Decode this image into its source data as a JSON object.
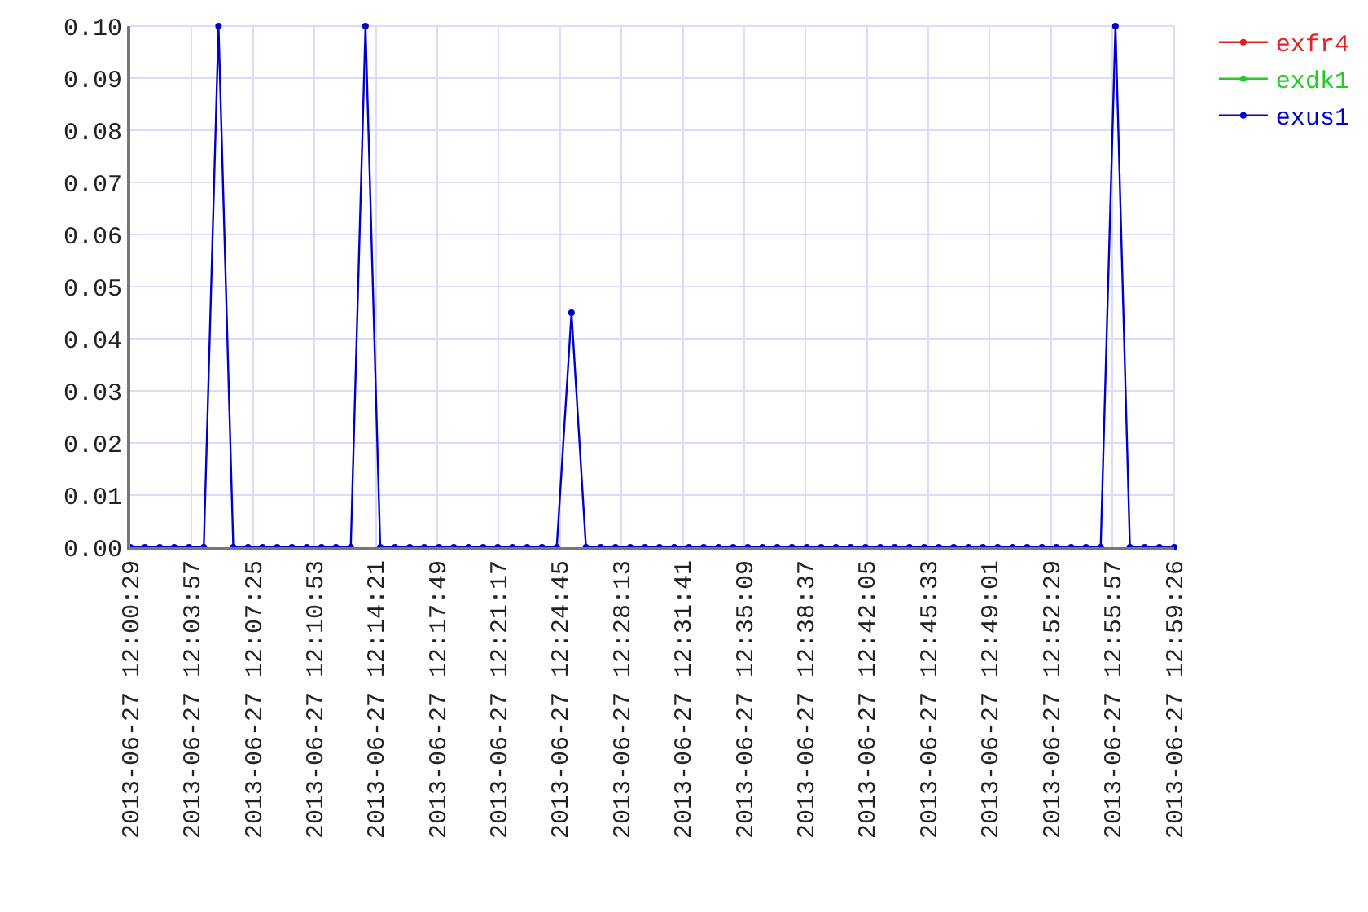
{
  "chart_data": {
    "type": "line",
    "x": [
      "2013-06-27T12:00:29",
      "2013-06-27T12:01:19",
      "2013-06-27T12:02:09",
      "2013-06-27T12:02:58",
      "2013-06-27T12:03:48",
      "2013-06-27T12:04:38",
      "2013-06-27T12:05:28",
      "2013-06-27T12:06:18",
      "2013-06-27T12:07:08",
      "2013-06-27T12:07:57",
      "2013-06-27T12:08:47",
      "2013-06-27T12:09:37",
      "2013-06-27T12:10:27",
      "2013-06-27T12:11:17",
      "2013-06-27T12:12:06",
      "2013-06-27T12:12:56",
      "2013-06-27T12:13:46",
      "2013-06-27T12:14:36",
      "2013-06-27T12:15:26",
      "2013-06-27T12:16:16",
      "2013-06-27T12:17:05",
      "2013-06-27T12:17:55",
      "2013-06-27T12:18:45",
      "2013-06-27T12:19:35",
      "2013-06-27T12:20:25",
      "2013-06-27T12:21:14",
      "2013-06-27T12:22:04",
      "2013-06-27T12:22:54",
      "2013-06-27T12:23:44",
      "2013-06-27T12:24:34",
      "2013-06-27T12:25:24",
      "2013-06-27T12:26:13",
      "2013-06-27T12:27:03",
      "2013-06-27T12:27:53",
      "2013-06-27T12:28:43",
      "2013-06-27T12:29:33",
      "2013-06-27T12:30:22",
      "2013-06-27T12:31:12",
      "2013-06-27T12:32:02",
      "2013-06-27T12:32:52",
      "2013-06-27T12:33:42",
      "2013-06-27T12:34:32",
      "2013-06-27T12:35:21",
      "2013-06-27T12:36:11",
      "2013-06-27T12:37:01",
      "2013-06-27T12:37:51",
      "2013-06-27T12:38:41",
      "2013-06-27T12:39:30",
      "2013-06-27T12:40:20",
      "2013-06-27T12:41:10",
      "2013-06-27T12:42:00",
      "2013-06-27T12:42:50",
      "2013-06-27T12:43:39",
      "2013-06-27T12:44:29",
      "2013-06-27T12:45:19",
      "2013-06-27T12:46:09",
      "2013-06-27T12:46:59",
      "2013-06-27T12:47:49",
      "2013-06-27T12:48:38",
      "2013-06-27T12:49:28",
      "2013-06-27T12:50:18",
      "2013-06-27T12:51:08",
      "2013-06-27T12:51:58",
      "2013-06-27T12:52:47",
      "2013-06-27T12:53:37",
      "2013-06-27T12:54:27",
      "2013-06-27T12:55:17",
      "2013-06-27T12:56:07",
      "2013-06-27T12:56:56",
      "2013-06-27T12:57:46",
      "2013-06-27T12:58:36",
      "2013-06-27T12:59:26"
    ],
    "series": [
      {
        "name": "exfr4",
        "color": "#dd2222",
        "values": [
          null,
          null,
          null,
          null,
          null,
          null,
          null,
          null,
          null,
          null,
          null,
          null,
          null,
          null,
          null,
          null,
          null,
          null,
          null,
          null,
          null,
          null,
          null,
          null,
          null,
          null,
          null,
          null,
          null,
          null,
          null,
          null,
          null,
          null,
          null,
          null,
          null,
          null,
          null,
          null,
          null,
          null,
          null,
          null,
          null,
          null,
          null,
          null,
          null,
          null,
          null,
          null,
          null,
          null,
          null,
          null,
          null,
          null,
          null,
          null,
          null,
          null,
          null,
          null,
          null,
          null,
          null,
          null,
          null,
          null,
          null,
          null
        ]
      },
      {
        "name": "exdk1",
        "color": "#22cc22",
        "values": [
          null,
          null,
          null,
          null,
          null,
          null,
          null,
          null,
          null,
          null,
          null,
          null,
          null,
          null,
          null,
          null,
          null,
          null,
          null,
          null,
          null,
          null,
          null,
          null,
          null,
          null,
          null,
          null,
          null,
          null,
          null,
          null,
          null,
          null,
          null,
          null,
          null,
          null,
          null,
          null,
          null,
          null,
          null,
          null,
          null,
          null,
          null,
          null,
          null,
          null,
          null,
          null,
          null,
          null,
          null,
          null,
          null,
          null,
          null,
          null,
          null,
          null,
          null,
          null,
          null,
          null,
          null,
          null,
          null,
          null,
          null,
          null
        ]
      },
      {
        "name": "exus1",
        "color": "#0000cc",
        "values": [
          0,
          0,
          0,
          0,
          0,
          0,
          0.1,
          0,
          0,
          0,
          0,
          0,
          0,
          0,
          0,
          0,
          0.1,
          0,
          0,
          0,
          0,
          0,
          0,
          0,
          0,
          0,
          0,
          0,
          0,
          0,
          0.045,
          0,
          0,
          0,
          0,
          0,
          0,
          0,
          0,
          0,
          0,
          0,
          0,
          0,
          0,
          0,
          0,
          0,
          0,
          0,
          0,
          0,
          0,
          0,
          0,
          0,
          0,
          0,
          0,
          0,
          0,
          0,
          0,
          0,
          0,
          0,
          0,
          0.1,
          0,
          0,
          0,
          0
        ]
      }
    ],
    "xlim": [
      "2013-06-27T12:00:29",
      "2013-06-27T12:59:26"
    ],
    "xticks": [
      {
        "value": "2013-06-27T12:00:29",
        "label": "2013-06-27 12:00:29"
      },
      {
        "value": "2013-06-27T12:03:57",
        "label": "2013-06-27 12:03:57"
      },
      {
        "value": "2013-06-27T12:07:25",
        "label": "2013-06-27 12:07:25"
      },
      {
        "value": "2013-06-27T12:10:53",
        "label": "2013-06-27 12:10:53"
      },
      {
        "value": "2013-06-27T12:14:21",
        "label": "2013-06-27 12:14:21"
      },
      {
        "value": "2013-06-27T12:17:49",
        "label": "2013-06-27 12:17:49"
      },
      {
        "value": "2013-06-27T12:21:17",
        "label": "2013-06-27 12:21:17"
      },
      {
        "value": "2013-06-27T12:24:45",
        "label": "2013-06-27 12:24:45"
      },
      {
        "value": "2013-06-27T12:28:13",
        "label": "2013-06-27 12:28:13"
      },
      {
        "value": "2013-06-27T12:31:41",
        "label": "2013-06-27 12:31:41"
      },
      {
        "value": "2013-06-27T12:35:09",
        "label": "2013-06-27 12:35:09"
      },
      {
        "value": "2013-06-27T12:38:37",
        "label": "2013-06-27 12:38:37"
      },
      {
        "value": "2013-06-27T12:42:05",
        "label": "2013-06-27 12:42:05"
      },
      {
        "value": "2013-06-27T12:45:33",
        "label": "2013-06-27 12:45:33"
      },
      {
        "value": "2013-06-27T12:49:01",
        "label": "2013-06-27 12:49:01"
      },
      {
        "value": "2013-06-27T12:52:29",
        "label": "2013-06-27 12:52:29"
      },
      {
        "value": "2013-06-27T12:55:57",
        "label": "2013-06-27 12:55:57"
      },
      {
        "value": "2013-06-27T12:59:26",
        "label": "2013-06-27 12:59:26"
      }
    ],
    "ylim": [
      0,
      0.1
    ],
    "yticks": [
      {
        "value": 0,
        "label": "0.00"
      },
      {
        "value": 0.01,
        "label": "0.01"
      },
      {
        "value": 0.02,
        "label": "0.02"
      },
      {
        "value": 0.03,
        "label": "0.03"
      },
      {
        "value": 0.04,
        "label": "0.04"
      },
      {
        "value": 0.05,
        "label": "0.05"
      },
      {
        "value": 0.06,
        "label": "0.06"
      },
      {
        "value": 0.07,
        "label": "0.07"
      },
      {
        "value": 0.08,
        "label": "0.08"
      },
      {
        "value": 0.09,
        "label": "0.09"
      },
      {
        "value": 0.1,
        "label": "0.10"
      }
    ],
    "grid": true,
    "legend": "top right",
    "marker": "circle",
    "line_style": "solid"
  }
}
